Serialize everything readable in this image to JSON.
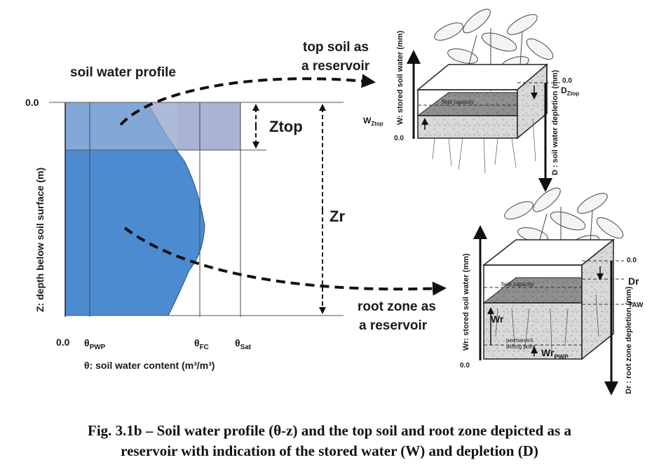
{
  "profile": {
    "title": "soil water profile",
    "depth_zero": "0.0",
    "theta_zero": "0.0",
    "ylabel": "Z: depth below soil surface (m)",
    "xlabel": "θ: soil water content (m³/m³)",
    "theta_pwp": {
      "base": "θ",
      "sub": "PWP"
    },
    "theta_fc": {
      "base": "θ",
      "sub": "FC"
    },
    "theta_sat": {
      "base": "θ",
      "sub": "Sat"
    },
    "ztop": "Ztop",
    "zr": "Zr",
    "colors": {
      "topsoil": "#9fb2d6",
      "rootzone": "#4a8ad0",
      "outline": "#333333"
    }
  },
  "top_reservoir": {
    "label_line1": "top soil as",
    "label_line2": "a reservoir",
    "w_axis": "W: stored soil water (mm)",
    "d_axis": "D : soil water depletion (mm)",
    "zero_right": "0.0",
    "zero_left": "0.0",
    "d_ztop": {
      "base": "D",
      "sub": "Ztop"
    },
    "w_ztop": {
      "base": "W",
      "sub": "Ztop"
    },
    "field_capacity": "field capacity"
  },
  "root_reservoir": {
    "label_line1": "root zone as",
    "label_line2": "a reservoir",
    "w_axis": "Wr: stored soil water (mm)",
    "d_axis": "Dr : root zone depletion (mm)",
    "zero_right": "0.0",
    "zero_left": "0.0",
    "dr": "Dr",
    "taw": "TAW",
    "wr": "Wr",
    "wr_pwp": {
      "base": "Wr",
      "sub": "PWP"
    },
    "field_capacity": "field capacity",
    "wilting_point_line1": "permanent",
    "wilting_point_line2": "wilting point"
  },
  "caption": {
    "line1": "Fig. 3.1b – Soil water profile (θ-z) and the top soil and root zone depicted as a",
    "line2": "reservoir with indication of the stored water (W) and depletion (D)"
  }
}
